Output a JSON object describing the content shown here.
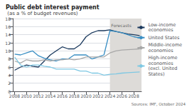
{
  "chart_data": {
    "type": "line",
    "title": "Public debt interest payment",
    "subtitle": " (as a % of budget revenues)",
    "source": "Sources: IMF, October 2024",
    "x": [
      2008,
      2009,
      2010,
      2011,
      2012,
      2013,
      2014,
      2015,
      2016,
      2017,
      2018,
      2019,
      2020,
      2021,
      2022,
      2023,
      2024,
      2025,
      2026,
      2027,
      2028,
      2029
    ],
    "series": [
      {
        "name": "Low-income\neconomies",
        "color": "#1c3a5e",
        "values": [
          5.2,
          6.0,
          6.5,
          6.2,
          6.0,
          7.5,
          9.0,
          10.0,
          11.0,
          10.5,
          10.5,
          11.5,
          13.5,
          14.5,
          15.0,
          15.0,
          15.2,
          14.8,
          14.5,
          14.2,
          14.0,
          13.8
        ]
      },
      {
        "name": "United States",
        "color": "#3a8fc4",
        "values": [
          9.2,
          9.0,
          9.5,
          10.0,
          8.8,
          8.2,
          7.8,
          7.5,
          8.0,
          8.0,
          9.0,
          9.0,
          9.0,
          8.0,
          8.5,
          9.0,
          15.0,
          14.8,
          14.5,
          14.0,
          13.5,
          13.2
        ]
      },
      {
        "name": "Middle-income\neconomies",
        "color": "#a8a8a8",
        "values": [
          7.5,
          7.0,
          7.8,
          7.5,
          7.5,
          7.8,
          7.5,
          7.8,
          7.8,
          8.0,
          7.8,
          8.0,
          8.5,
          8.5,
          8.5,
          8.5,
          9.5,
          10.0,
          10.2,
          10.3,
          10.4,
          10.5
        ]
      },
      {
        "name": "High-income\neconomies\n(excl. United\nStates)",
        "color": "#7ec8e3",
        "values": [
          8.5,
          6.5,
          6.0,
          6.5,
          6.5,
          6.2,
          6.0,
          5.5,
          5.5,
          5.5,
          5.5,
          5.0,
          5.0,
          4.5,
          4.5,
          4.0,
          4.2,
          4.3,
          4.5,
          4.6,
          4.7,
          4.8
        ]
      }
    ],
    "xlim": [
      2007.7,
      2029.3
    ],
    "xticks": [
      2008,
      2010,
      2012,
      2014,
      2016,
      2018,
      2020,
      2022,
      2024,
      2026,
      2028
    ],
    "ylim": [
      0,
      18
    ],
    "yticks": [
      0,
      2,
      4,
      6,
      8,
      10,
      12,
      14,
      16,
      18
    ],
    "shaded_spans": [
      {
        "x0": 2024,
        "x1": 2030,
        "color": "#dddbd8"
      }
    ],
    "annotations": [
      {
        "text": "Forecasts",
        "x": 2024.2,
        "y": 16.8
      }
    ],
    "grid": true,
    "legend": "right"
  }
}
